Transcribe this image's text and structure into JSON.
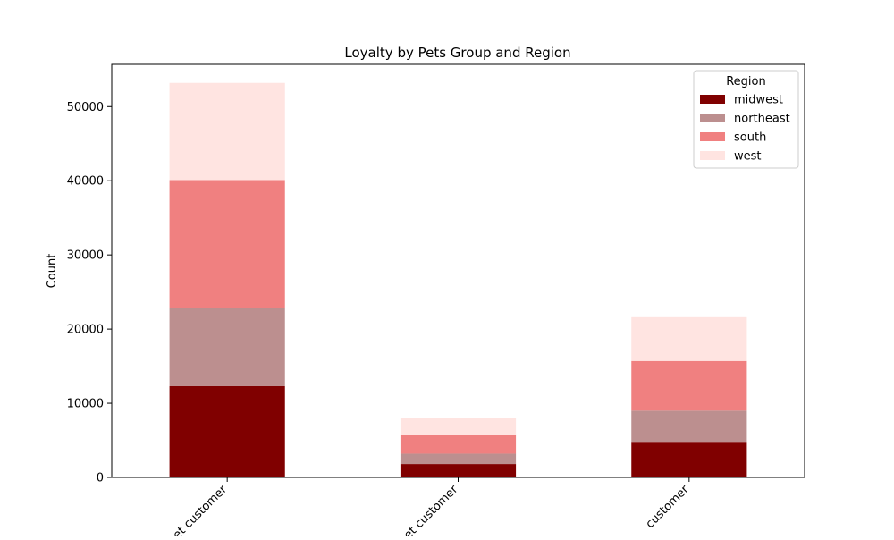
{
  "chart_data": {
    "type": "bar",
    "stacked": true,
    "title": "Loyalty by Pets Group and Region",
    "xlabel": "",
    "ylabel": "Count",
    "categories": [
      "pet customer",
      "pet customer",
      "customer"
    ],
    "category_tick_labels_visible": [
      "t customer",
      "t customer",
      "r customer"
    ],
    "ylim": [
      0,
      55700
    ],
    "yticks": [
      0,
      10000,
      20000,
      30000,
      40000,
      50000
    ],
    "ytick_labels": [
      "0",
      "10000",
      "20000",
      "30000",
      "40000",
      "50000"
    ],
    "legend": {
      "title": "Region",
      "placement": "top-right"
    },
    "series": [
      {
        "name": "midwest",
        "color": "#800000",
        "values": [
          12300,
          1800,
          4800
        ]
      },
      {
        "name": "northeast",
        "color": "#bc8f8f",
        "values": [
          10500,
          1400,
          4200
        ]
      },
      {
        "name": "south",
        "color": "#f08080",
        "values": [
          17300,
          2500,
          6700
        ]
      },
      {
        "name": "west",
        "color": "#ffe4e1",
        "values": [
          13100,
          2300,
          5900
        ]
      }
    ],
    "grid": false
  }
}
